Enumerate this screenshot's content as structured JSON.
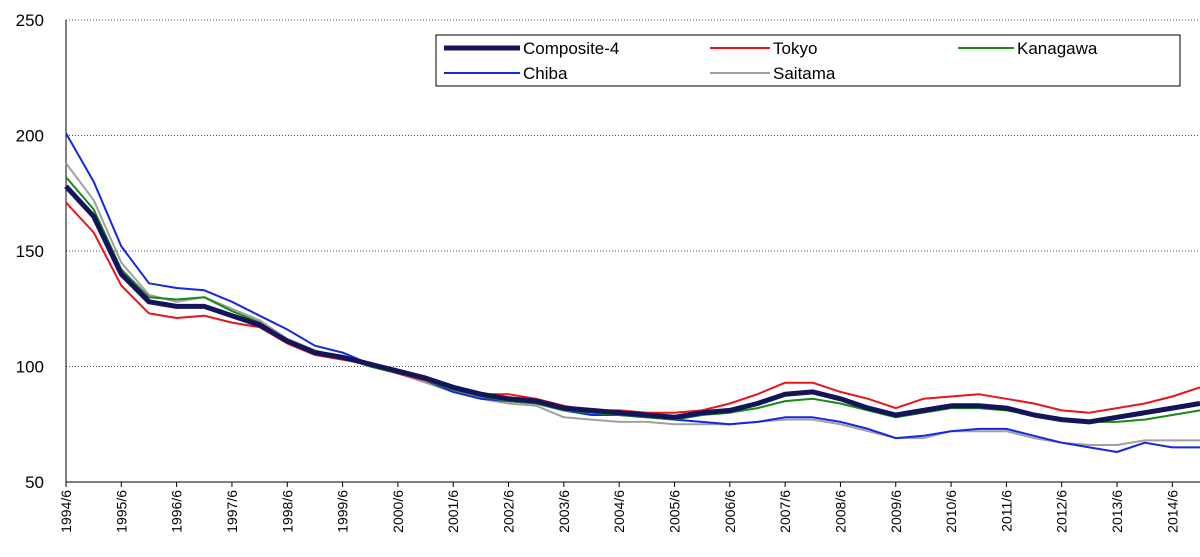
{
  "chart_data": {
    "type": "line",
    "categories": [
      "1994/6",
      null,
      "1995/6",
      null,
      "1996/6",
      null,
      "1997/6",
      null,
      "1998/6",
      null,
      "1999/6",
      null,
      "2000/6",
      null,
      "2001/6",
      null,
      "2002/6",
      null,
      "2003/6",
      null,
      "2004/6",
      null,
      "2005/6",
      null,
      "2006/6",
      null,
      "2007/6",
      null,
      "2008/6",
      null,
      "2009/6",
      null,
      "2010/6",
      null,
      "2011/6",
      null,
      "2012/6",
      null,
      "2013/6",
      null,
      "2014/6",
      null
    ],
    "ylim": [
      50,
      250
    ],
    "yticks": [
      50,
      100,
      150,
      200,
      250
    ],
    "grid": true,
    "series": [
      {
        "name": "Composite-4",
        "color": "#14145a",
        "width": 5,
        "values": [
          178,
          165,
          140,
          128,
          126,
          126,
          122,
          118,
          111,
          106,
          104,
          101,
          98,
          95,
          91,
          88,
          86,
          85,
          82,
          81,
          80,
          79,
          78,
          80,
          81,
          84,
          88,
          89,
          86,
          82,
          79,
          81,
          83,
          83,
          82,
          79,
          77,
          76,
          78,
          80,
          82,
          84
        ]
      },
      {
        "name": "Tokyo",
        "color": "#e8141e",
        "width": 2,
        "values": [
          171,
          158,
          135,
          123,
          121,
          122,
          119,
          117,
          110,
          105,
          103,
          101,
          97,
          94,
          91,
          88,
          88,
          86,
          83,
          81,
          81,
          80,
          80,
          81,
          84,
          88,
          93,
          93,
          89,
          86,
          82,
          86,
          87,
          88,
          86,
          84,
          81,
          80,
          82,
          84,
          87,
          91
        ]
      },
      {
        "name": "Kanagawa",
        "color": "#148c14",
        "width": 2,
        "values": [
          182,
          168,
          142,
          130,
          129,
          130,
          124,
          119,
          111,
          106,
          104,
          100,
          97,
          94,
          90,
          87,
          85,
          84,
          81,
          80,
          79,
          78,
          77,
          79,
          80,
          82,
          85,
          86,
          84,
          81,
          78,
          80,
          82,
          82,
          81,
          79,
          77,
          76,
          76,
          77,
          79,
          81
        ]
      },
      {
        "name": "Chiba",
        "color": "#1428e0",
        "width": 2,
        "values": [
          201,
          180,
          152,
          136,
          134,
          133,
          128,
          122,
          116,
          109,
          106,
          101,
          97,
          94,
          89,
          86,
          85,
          84,
          81,
          79,
          79,
          78,
          77,
          76,
          75,
          76,
          78,
          78,
          76,
          73,
          69,
          70,
          72,
          73,
          73,
          70,
          67,
          65,
          63,
          67,
          65,
          65
        ]
      },
      {
        "name": "Saitama",
        "color": "#a0a0a0",
        "width": 2,
        "values": [
          188,
          172,
          145,
          131,
          128,
          130,
          125,
          120,
          112,
          107,
          104,
          101,
          97,
          93,
          89,
          86,
          84,
          83,
          78,
          77,
          76,
          76,
          75,
          75,
          75,
          76,
          77,
          77,
          75,
          72,
          69,
          69,
          72,
          72,
          72,
          69,
          67,
          66,
          66,
          68,
          68,
          68
        ]
      }
    ]
  }
}
